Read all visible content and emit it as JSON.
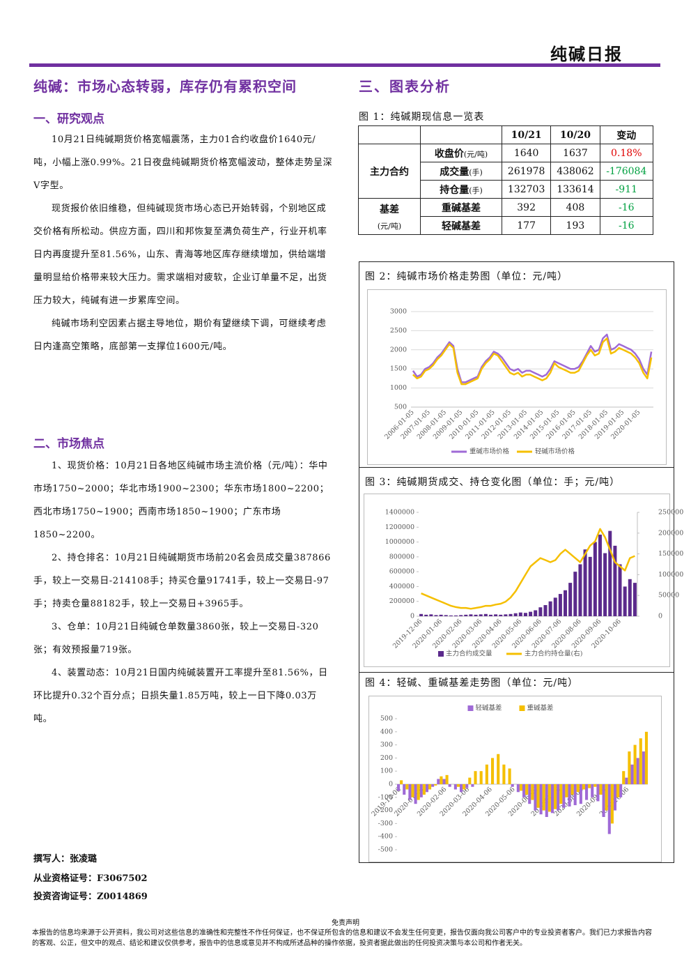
{
  "header": {
    "title": "纯碱日报"
  },
  "left": {
    "headline": "纯碱：市场心态转弱，库存仍有累积空间",
    "research": {
      "title": "一、研究观点",
      "paragraphs": [
        "10月21日纯碱期货价格宽幅震荡，主力01合约收盘价1640元/吨，小幅上涨0.99%。21日夜盘纯碱期货价格宽幅波动，整体走势呈深V字型。",
        "现货报价依旧维稳，但纯碱现货市场心态已开始转弱，个别地区成交价格有所松动。供应方面，四川和邦恢复至满负荷生产，行业开机率日内再度提升至81.56%，山东、青海等地区库存继续增加，供给端增量明显给价格带来较大压力。需求端相对疲软，企业订单量不足，出货压力较大，纯碱有进一步累库空间。",
        "纯碱市场利空因素占据主导地位，期价有望继续下调，可继续考虑日内逢高空策略，底部第一支撑位1600元/吨。"
      ]
    },
    "focus": {
      "title": "二、市场焦点",
      "paragraphs": [
        "1、现货价格：10月21日各地区纯碱市场主流价格（元/吨）：华中市场1750~2000；华北市场1900~2300；华东市场1800~2200；西北市场1750~1900；西南市场1850~1900；广东市场1850~2200。",
        "2、持仓排名：10月21日纯碱期货市场前20名会员成交量387866手，较上一交易日-214108手；持买仓量91741手，较上一交易日-97手；持卖仓量88182手，较上一交易日+3965手。",
        "3、仓单：10月21日纯碱仓单数量3860张，较上一交易日-320张；有效预报量719张。",
        "4、装置动态：10月21日国内纯碱装置开工率提升至81.56%，日环比提升0.32个百分点；日损失量1.85万吨，较上一日下降0.03万吨。"
      ]
    },
    "authors": [
      "撰写人：张凌璐",
      "从业资格证号：F3067502",
      "投资咨询证号：Z0014869"
    ]
  },
  "right": {
    "title": "三、图表分析"
  },
  "table": {
    "caption": "图 1：纯碱期现信息一览表",
    "columns": [
      "10/21",
      "10/20",
      "变动"
    ],
    "groups": [
      {
        "name": "主力合约",
        "rows": [
          {
            "label": "收盘价",
            "unit": "(元/吨)",
            "cells": [
              "1640",
              "1637",
              "0.18%"
            ]
          },
          {
            "label": "成交量",
            "unit": "(手)",
            "cells": [
              "261978",
              "438062",
              "-176084"
            ]
          },
          {
            "label": "持仓量",
            "unit": "(手)",
            "cells": [
              "132703",
              "133614",
              "-911"
            ]
          }
        ]
      },
      {
        "name": "基差",
        "unit": "(元/吨)",
        "rows": [
          {
            "label": "重碱基差",
            "cells": [
              "392",
              "408",
              "-16"
            ]
          },
          {
            "label": "轻碱基差",
            "cells": [
              "177",
              "193",
              "-16"
            ]
          }
        ]
      }
    ]
  },
  "chart_data": [
    {
      "type": "line",
      "title": "图 2：纯碱市场价格走势图（单位：元/吨）",
      "legend": "bottom",
      "grid": true,
      "categories": [
        "2006-01-05",
        null,
        null,
        null,
        "2007-01-05",
        null,
        null,
        null,
        "2008-01-05",
        null,
        null,
        null,
        "2009-01-05",
        null,
        null,
        null,
        "2010-01-05",
        null,
        null,
        null,
        "2011-01-05",
        null,
        null,
        null,
        "2012-01-05",
        null,
        null,
        null,
        "2013-01-05",
        null,
        null,
        null,
        "2014-01-05",
        null,
        null,
        null,
        "2015-01-05",
        null,
        null,
        null,
        "2016-01-05",
        null,
        null,
        null,
        "2017-01-05",
        null,
        null,
        null,
        "2018-01-05",
        null,
        null,
        null,
        "2019-01-05",
        null,
        null,
        null,
        "2020-01-05",
        null,
        null,
        null
      ],
      "ylim": [
        500,
        3000
      ],
      "yticks": [
        500,
        1000,
        1500,
        2000,
        2500,
        3000
      ],
      "series": [
        {
          "name": "重碱市场价格",
          "color": "#9f6ad6",
          "values": [
            1450,
            1300,
            1350,
            1500,
            1550,
            1650,
            1800,
            1900,
            2050,
            2200,
            2100,
            1500,
            1150,
            1150,
            1200,
            1250,
            1300,
            1550,
            1700,
            1800,
            1950,
            1900,
            1800,
            1650,
            1500,
            1450,
            1500,
            1400,
            1450,
            1450,
            1400,
            1350,
            1300,
            1350,
            1500,
            1700,
            1650,
            1600,
            1550,
            1500,
            1500,
            1550,
            1700,
            1900,
            2100,
            1950,
            2000,
            2300,
            2400,
            2000,
            2050,
            2150,
            2100,
            2050,
            2000,
            1900,
            1750,
            1500,
            1350,
            1950
          ]
        },
        {
          "name": "轻碱市场价格",
          "color": "#f5bf00",
          "values": [
            1350,
            1250,
            1300,
            1450,
            1500,
            1600,
            1750,
            1850,
            2000,
            2150,
            2050,
            1400,
            1100,
            1100,
            1150,
            1200,
            1250,
            1500,
            1650,
            1750,
            1900,
            1850,
            1700,
            1550,
            1400,
            1350,
            1400,
            1300,
            1350,
            1350,
            1300,
            1250,
            1200,
            1250,
            1400,
            1650,
            1550,
            1500,
            1450,
            1400,
            1400,
            1450,
            1650,
            1850,
            2000,
            1850,
            1900,
            2200,
            2300,
            1900,
            1950,
            2050,
            2000,
            1950,
            1900,
            1800,
            1650,
            1400,
            1250,
            1800
          ]
        }
      ]
    },
    {
      "type": "bar_line",
      "title": "图 3：纯碱期货成交、持仓变化图（单位：手；元/吨）",
      "legend": "bottom",
      "grid": false,
      "categories": [
        "2019-12-06",
        null,
        null,
        null,
        "2020-01-06",
        null,
        null,
        null,
        "2020-02-06",
        null,
        null,
        null,
        "2020-03-06",
        null,
        null,
        null,
        "2020-04-06",
        null,
        null,
        null,
        "2020-05-06",
        null,
        null,
        null,
        "2020-06-06",
        null,
        null,
        null,
        "2020-07-06",
        null,
        null,
        null,
        "2020-08-06",
        null,
        null,
        null,
        "2020-09-06",
        null,
        null,
        null,
        "2020-10-06",
        null,
        null,
        null
      ],
      "ylim": [
        0,
        1400000
      ],
      "yticks": [
        0,
        200000,
        400000,
        600000,
        800000,
        1000000,
        1200000,
        1400000
      ],
      "y2lim": [
        0,
        250000
      ],
      "y2ticks": [
        0,
        50000,
        100000,
        150000,
        200000,
        250000
      ],
      "series": [
        {
          "name": "主力合约成交量",
          "color": "#5b2a8c",
          "values": [
            30000,
            20000,
            25000,
            15000,
            20000,
            15000,
            10000,
            10000,
            15000,
            20000,
            25000,
            20000,
            25000,
            30000,
            20000,
            25000,
            20000,
            25000,
            30000,
            40000,
            50000,
            45000,
            60000,
            80000,
            120000,
            150000,
            200000,
            250000,
            300000,
            350000,
            450000,
            600000,
            700000,
            900000,
            800000,
            1000000,
            1100000,
            850000,
            1150000,
            950000,
            700000,
            400000,
            500000,
            450000
          ]
        },
        {
          "name": "主力合约持仓量(右)",
          "color": "#f5bf00",
          "axis": "y2",
          "values": [
            55000,
            50000,
            45000,
            40000,
            35000,
            30000,
            25000,
            22000,
            20000,
            20000,
            18000,
            20000,
            22000,
            25000,
            25000,
            28000,
            30000,
            35000,
            45000,
            60000,
            80000,
            100000,
            120000,
            130000,
            140000,
            135000,
            130000,
            135000,
            150000,
            160000,
            150000,
            140000,
            130000,
            150000,
            170000,
            180000,
            210000,
            190000,
            160000,
            130000,
            120000,
            110000,
            140000,
            145000
          ]
        }
      ]
    },
    {
      "type": "bar",
      "title": "图 4：轻碱、重碱基差走势图（单位：元/吨）",
      "legend": "top",
      "grid": false,
      "categories": [
        "2019-12-06",
        null,
        null,
        null,
        "2020-01-06",
        null,
        null,
        null,
        "2020-02-06",
        null,
        null,
        null,
        "2020-03-06",
        null,
        null,
        null,
        "2020-04-06",
        null,
        null,
        null,
        "2020-05-06",
        null,
        null,
        null,
        "2020-06-06",
        null,
        null,
        null,
        "2020-07-06",
        null,
        null,
        null,
        "2020-08-06",
        null,
        null,
        null,
        "2020-09-06",
        null,
        null,
        null,
        "2020-10-06",
        null,
        null,
        null
      ],
      "ylim": [
        -500,
        500
      ],
      "yticks": [
        -500,
        -400,
        -300,
        -200,
        -100,
        0,
        100,
        200,
        300,
        400,
        500
      ],
      "series": [
        {
          "name": "轻碱基差",
          "color": "#9f6ad6",
          "values": [
            -50,
            -80,
            -120,
            -150,
            -100,
            -60,
            -20,
            40,
            40,
            -20,
            -40,
            -60,
            -30,
            -20,
            0,
            0,
            0,
            0,
            0,
            0,
            -20,
            -60,
            -100,
            -150,
            -200,
            -230,
            -250,
            -220,
            -200,
            -180,
            -170,
            -160,
            -150,
            -120,
            -100,
            -130,
            -250,
            -380,
            -200,
            -100,
            50,
            150,
            200,
            250
          ]
        },
        {
          "name": "重碱基差",
          "color": "#f5bf00",
          "values": [
            30,
            -40,
            -100,
            -120,
            -80,
            -40,
            -10,
            60,
            70,
            0,
            -20,
            -40,
            50,
            100,
            100,
            150,
            200,
            230,
            150,
            120,
            0,
            -50,
            -80,
            -120,
            -180,
            -200,
            -210,
            -190,
            -150,
            -100,
            -80,
            -60,
            -40,
            -30,
            -20,
            -80,
            -200,
            -300,
            -100,
            100,
            250,
            300,
            350,
            400
          ]
        }
      ]
    }
  ],
  "disclaimer": {
    "title": "免责声明",
    "text": "本报告的信息均来源于公开资料，我公司对这些信息的准确性和完整性不作任何保证，也不保证所包含的信息和建议不会发生任何变更，报告仅面向我公司客户中的专业投资者客户。我们已力求报告内容的客观、公正，但文中的观点、结论和建议仅供参考，报告中的信息或意见并不构成所述品种的操作依据，投资者据此做出的任何投资决策与本公司和作者无关。"
  }
}
